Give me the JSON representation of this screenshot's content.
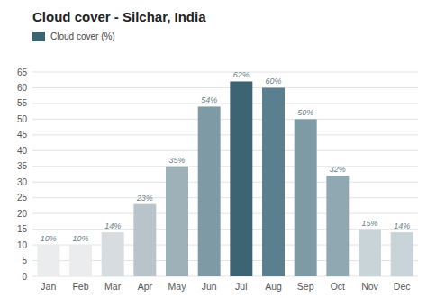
{
  "chart_data": {
    "type": "bar",
    "title": "Cloud cover - Silchar, India",
    "categories": [
      "Jan",
      "Feb",
      "Mar",
      "Apr",
      "May",
      "Jun",
      "Jul",
      "Aug",
      "Sep",
      "Oct",
      "Nov",
      "Dec"
    ],
    "series": [
      {
        "name": "Cloud cover (%)",
        "color": "#3d6472",
        "colors": [
          "#eaecee",
          "#eaecee",
          "#d6dce0",
          "#b8c4ca",
          "#9eb0b8",
          "#7d9aa5",
          "#3d6472",
          "#5a7f8e",
          "#7d9aa5",
          "#90a8b2",
          "#c8d4d8",
          "#c8d4d8"
        ],
        "values": [
          10,
          10,
          14,
          23,
          35,
          54,
          62,
          60,
          50,
          32,
          15,
          14
        ],
        "value_labels": [
          "10%",
          "10%",
          "14%",
          "23%",
          "35%",
          "54%",
          "62%",
          "60%",
          "50%",
          "32%",
          "15%",
          "14%"
        ]
      }
    ],
    "ylim": [
      0,
      65
    ],
    "yticks": [
      0,
      5,
      10,
      15,
      20,
      25,
      30,
      35,
      40,
      45,
      50,
      55,
      60,
      65
    ],
    "grid": true,
    "legend": "upper-left",
    "data_labels": true
  }
}
